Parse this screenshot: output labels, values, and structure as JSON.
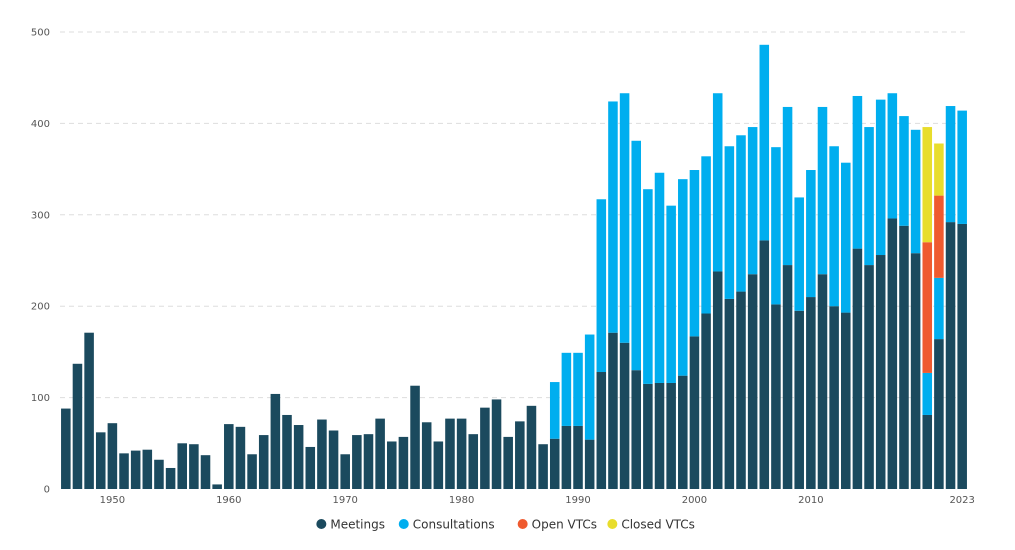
{
  "chart_data": {
    "type": "bar",
    "stacked": true,
    "ylim": [
      0,
      500
    ],
    "yticks": [
      0,
      100,
      200,
      300,
      400,
      500
    ],
    "xticks": [
      1950,
      1960,
      1970,
      1980,
      1990,
      2000,
      2010,
      2023
    ],
    "grid": true,
    "legend_position": "bottom-center",
    "colors": {
      "Meetings": "#1b4a5e",
      "Consultations": "#00aeef",
      "Open VTCs": "#ef5a2f",
      "Closed VTCs": "#e8dd2c"
    },
    "years": [
      1946,
      1947,
      1948,
      1949,
      1950,
      1951,
      1952,
      1953,
      1954,
      1955,
      1956,
      1957,
      1958,
      1959,
      1960,
      1961,
      1962,
      1963,
      1964,
      1965,
      1966,
      1967,
      1968,
      1969,
      1970,
      1971,
      1972,
      1973,
      1974,
      1975,
      1976,
      1977,
      1978,
      1979,
      1980,
      1981,
      1982,
      1983,
      1984,
      1985,
      1986,
      1987,
      1988,
      1989,
      1990,
      1991,
      1992,
      1993,
      1994,
      1995,
      1996,
      1997,
      1998,
      1999,
      2000,
      2001,
      2002,
      2003,
      2004,
      2005,
      2006,
      2007,
      2008,
      2009,
      2010,
      2011,
      2012,
      2013,
      2014,
      2015,
      2016,
      2017,
      2018,
      2019,
      2020,
      2021,
      2022,
      2023
    ],
    "series": [
      {
        "name": "Meetings",
        "values": [
          88,
          137,
          171,
          62,
          72,
          39,
          42,
          43,
          32,
          23,
          50,
          49,
          37,
          5,
          71,
          68,
          38,
          59,
          104,
          81,
          70,
          46,
          76,
          64,
          38,
          59,
          60,
          77,
          52,
          57,
          113,
          73,
          52,
          77,
          77,
          60,
          89,
          98,
          57,
          74,
          91,
          49,
          55,
          69,
          69,
          54,
          128,
          171,
          160,
          130,
          115,
          116,
          116,
          124,
          167,
          192,
          238,
          208,
          216,
          235,
          272,
          202,
          245,
          195,
          210,
          235,
          200,
          193,
          263,
          245,
          256,
          296,
          288,
          258,
          81,
          164,
          292,
          290
        ]
      },
      {
        "name": "Consultations",
        "values": [
          0,
          0,
          0,
          0,
          0,
          0,
          0,
          0,
          0,
          0,
          0,
          0,
          0,
          0,
          0,
          0,
          0,
          0,
          0,
          0,
          0,
          0,
          0,
          0,
          0,
          0,
          0,
          0,
          0,
          0,
          0,
          0,
          0,
          0,
          0,
          0,
          0,
          0,
          0,
          0,
          0,
          0,
          62,
          80,
          80,
          115,
          189,
          253,
          273,
          251,
          213,
          230,
          194,
          215,
          182,
          172,
          195,
          167,
          171,
          161,
          214,
          172,
          173,
          124,
          139,
          183,
          175,
          164,
          167,
          151,
          170,
          137,
          120,
          135,
          46,
          67,
          127,
          124
        ]
      },
      {
        "name": "Open VTCs",
        "values": [
          0,
          0,
          0,
          0,
          0,
          0,
          0,
          0,
          0,
          0,
          0,
          0,
          0,
          0,
          0,
          0,
          0,
          0,
          0,
          0,
          0,
          0,
          0,
          0,
          0,
          0,
          0,
          0,
          0,
          0,
          0,
          0,
          0,
          0,
          0,
          0,
          0,
          0,
          0,
          0,
          0,
          0,
          0,
          0,
          0,
          0,
          0,
          0,
          0,
          0,
          0,
          0,
          0,
          0,
          0,
          0,
          0,
          0,
          0,
          0,
          0,
          0,
          0,
          0,
          0,
          0,
          0,
          0,
          0,
          0,
          0,
          0,
          0,
          0,
          143,
          90,
          0,
          0
        ]
      },
      {
        "name": "Closed VTCs",
        "values": [
          0,
          0,
          0,
          0,
          0,
          0,
          0,
          0,
          0,
          0,
          0,
          0,
          0,
          0,
          0,
          0,
          0,
          0,
          0,
          0,
          0,
          0,
          0,
          0,
          0,
          0,
          0,
          0,
          0,
          0,
          0,
          0,
          0,
          0,
          0,
          0,
          0,
          0,
          0,
          0,
          0,
          0,
          0,
          0,
          0,
          0,
          0,
          0,
          0,
          0,
          0,
          0,
          0,
          0,
          0,
          0,
          0,
          0,
          0,
          0,
          0,
          0,
          0,
          0,
          0,
          0,
          0,
          0,
          0,
          0,
          0,
          0,
          0,
          0,
          126,
          57,
          0,
          0
        ]
      }
    ]
  }
}
